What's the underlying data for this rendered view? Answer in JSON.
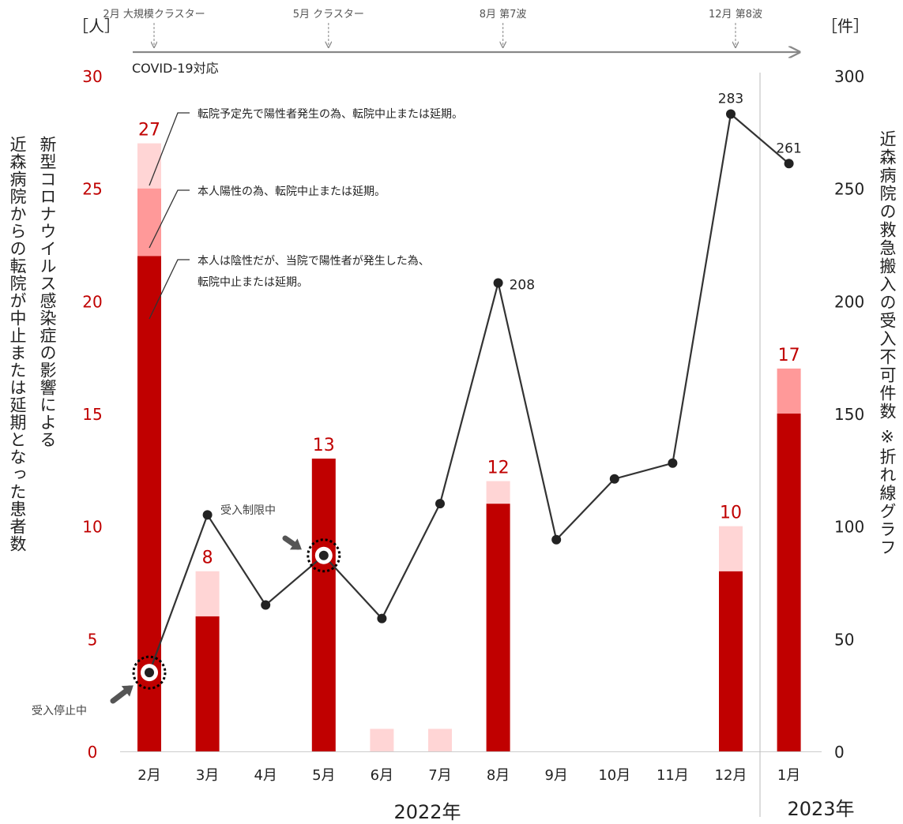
{
  "chart_data": {
    "type": "bar",
    "categories": [
      "2月",
      "3月",
      "4月",
      "5月",
      "6月",
      "7月",
      "8月",
      "9月",
      "10月",
      "11月",
      "12月",
      "1月"
    ],
    "year_labels": {
      "y2022": "2022年",
      "y2023": "2023年"
    },
    "left_axis": {
      "unit": "［人］",
      "title_line1": "新型コロナウイルス感染症の影響による",
      "title_line2": "近森病院からの転院が中止または延期となった患者数",
      "ylim": [
        0,
        30
      ],
      "ticks": [
        "0",
        "5",
        "10",
        "15",
        "20",
        "25",
        "30"
      ]
    },
    "right_axis": {
      "unit": "［件］",
      "title": "近森病院の救急搬入の受入不可件数 ※折れ線グラフ",
      "ylim": [
        0,
        300
      ],
      "ticks": [
        "0",
        "50",
        "100",
        "150",
        "200",
        "250",
        "300"
      ]
    },
    "series": [
      {
        "name": "本人は陰性だが、当院で陽性者が発生した為、転院中止または延期。",
        "color": "#c00000",
        "values": [
          22,
          6,
          0,
          13,
          0,
          0,
          11,
          0,
          0,
          0,
          8,
          15
        ]
      },
      {
        "name": "本人陽性の為、転院中止または延期。",
        "color": "#ff9999",
        "values": [
          3,
          0,
          0,
          0,
          0,
          0,
          0,
          0,
          0,
          0,
          0,
          2
        ]
      },
      {
        "name": "転院予定先で陽性者発生の為、転院中止または延期。",
        "color": "#ffd5d5",
        "values": [
          2,
          2,
          0,
          0,
          1,
          1,
          1,
          0,
          0,
          0,
          2,
          0
        ]
      }
    ],
    "totals": [
      "27",
      "8",
      "",
      "13",
      "",
      "",
      "12",
      "",
      "",
      "",
      "10",
      "17"
    ],
    "line": {
      "values": [
        35,
        105,
        65,
        87,
        59,
        110,
        208,
        94,
        121,
        128,
        283,
        261
      ],
      "labels": [
        "",
        "",
        "",
        "",
        "",
        "",
        "208",
        "",
        "",
        "",
        "283",
        "261"
      ]
    },
    "annotations": {
      "legend_a": "転院予定先で陽性者発生の為、転院中止または延期。",
      "legend_b": "本人陽性の為、転院中止または延期。",
      "legend_c1": "本人は陰性だが、当院で陽性者が発生した為、",
      "legend_c2": "転院中止または延期。",
      "stop": "受入停止中",
      "limit": "受入制限中"
    },
    "timeline": {
      "label": "COVID-19対応",
      "events": [
        {
          "text": "2月 大規模クラスター",
          "month_index": 0
        },
        {
          "text": "5月 クラスター",
          "month_index": 3
        },
        {
          "text": "8月 第7波",
          "month_index": 6
        },
        {
          "text": "12月 第8波",
          "month_index": 10
        }
      ]
    },
    "colors": {
      "axis_red": "#c00000",
      "line": "#333333"
    }
  }
}
